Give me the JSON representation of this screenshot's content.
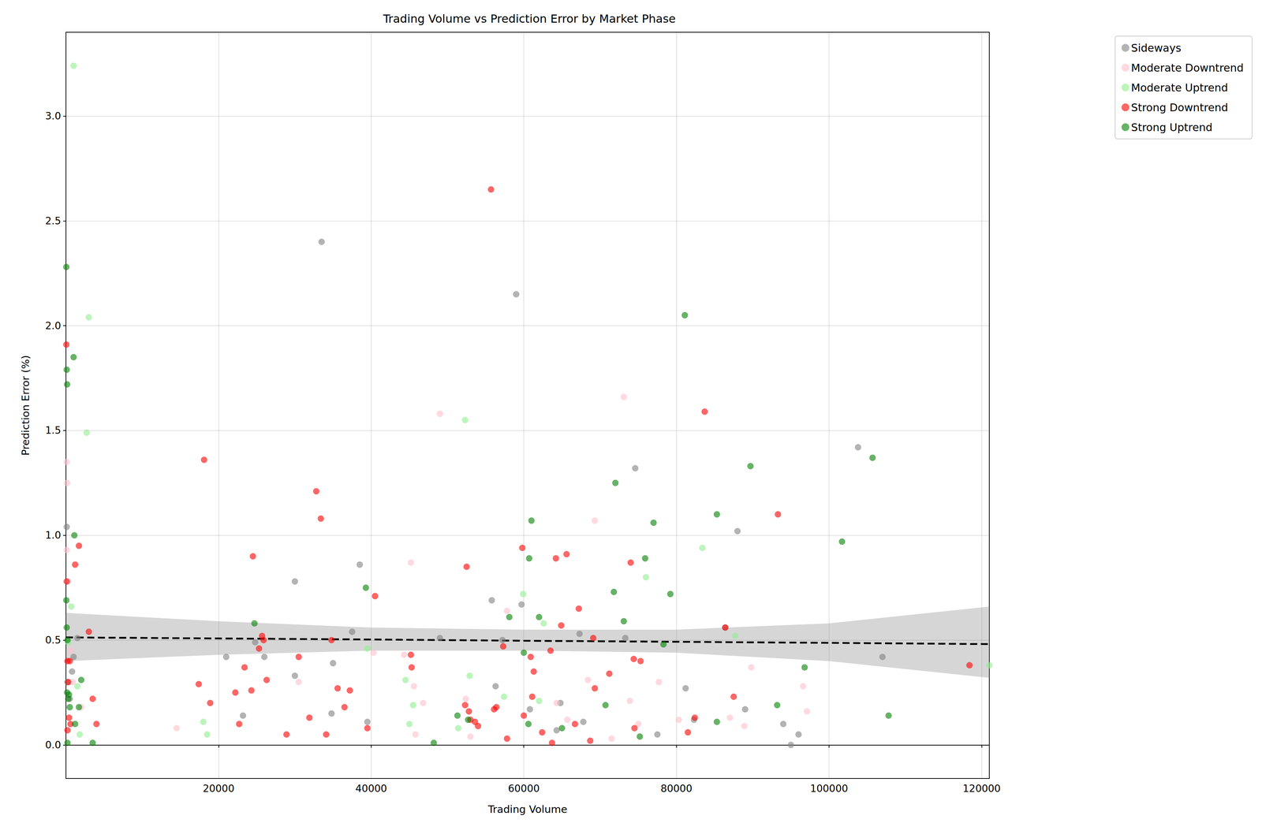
{
  "chart_data": {
    "type": "scatter",
    "title": "Trading Volume vs Prediction Error by Market Phase",
    "x_label": "Trading Volume",
    "y_label": "Prediction Error (%)",
    "xlim": [
      0,
      121000
    ],
    "xticks": [
      20000,
      40000,
      60000,
      80000,
      100000,
      120000
    ],
    "ylim": [
      -0.16,
      3.4
    ],
    "yticks": [
      {
        "value": 0,
        "label": "0.0"
      },
      0.5,
      {
        "value": 1,
        "label": "1.0"
      },
      1.5,
      {
        "value": 2,
        "label": "2.0"
      },
      2.5,
      {
        "value": 3,
        "label": "3.0"
      }
    ],
    "grid": true,
    "legend": "upper right outside",
    "series": [
      {
        "name": "Sideways",
        "color": "#808080",
        "marker": "circle",
        "x": [
          100,
          800,
          1000,
          1500,
          21000,
          23200,
          24800,
          26000,
          30000,
          30000,
          33500,
          34800,
          35000,
          37500,
          38500,
          39500,
          49000,
          55800,
          56300,
          57200,
          59000,
          59700,
          60800,
          64300,
          64800,
          67300,
          67800,
          73300,
          74600,
          77500,
          81200,
          82300,
          86400,
          88000,
          89000,
          94000,
          95000,
          96000,
          103800,
          107000,
          200,
          500
        ],
        "values": [
          1.04,
          0.35,
          0.42,
          0.51,
          0.42,
          0.14,
          0.49,
          0.42,
          0.78,
          0.33,
          2.4,
          0.15,
          0.39,
          0.54,
          0.86,
          0.11,
          0.51,
          0.69,
          0.28,
          0.5,
          2.15,
          0.67,
          0.17,
          0.07,
          0.2,
          0.53,
          0.11,
          0.51,
          1.32,
          0.05,
          0.27,
          0.12,
          0.56,
          1.02,
          0.17,
          0.1,
          0.0,
          0.05,
          1.42,
          0.42,
          0.3,
          0.22
        ]
      },
      {
        "name": "Moderate Downtrend",
        "color": "#ffc0cb",
        "marker": "circle",
        "x": [
          100,
          150,
          100,
          300,
          600,
          900,
          2000,
          14500,
          30500,
          40300,
          44300,
          45200,
          45600,
          45800,
          46800,
          49000,
          52400,
          53000,
          57800,
          64300,
          65700,
          68400,
          69300,
          71500,
          73100,
          73900,
          75000,
          77700,
          80300,
          87000,
          88900,
          89800,
          96600,
          97100
        ],
        "values": [
          1.35,
          1.25,
          0.93,
          0.78,
          0.45,
          0.3,
          0.18,
          0.08,
          0.3,
          0.44,
          0.43,
          0.87,
          0.28,
          0.05,
          0.2,
          1.58,
          0.22,
          0.04,
          0.64,
          0.2,
          0.12,
          0.31,
          1.07,
          0.03,
          1.66,
          0.21,
          0.1,
          0.3,
          0.12,
          0.13,
          0.09,
          0.37,
          0.28,
          0.16
        ]
      },
      {
        "name": "Moderate Uptrend",
        "color": "#90ee90",
        "marker": "circle",
        "x": [
          1000,
          3000,
          2700,
          700,
          1500,
          300,
          1800,
          18000,
          18500,
          39500,
          44500,
          45000,
          45500,
          51400,
          52300,
          52900,
          57400,
          59900,
          62000,
          62600,
          76000,
          83400,
          87700,
          121000
        ],
        "values": [
          3.24,
          2.04,
          1.49,
          0.66,
          0.28,
          0.49,
          0.05,
          0.11,
          0.05,
          0.46,
          0.31,
          0.1,
          0.19,
          0.08,
          1.55,
          0.33,
          0.23,
          0.72,
          0.21,
          0.58,
          0.8,
          0.94,
          0.52,
          0.38
        ]
      },
      {
        "name": "Strong Downtrend",
        "color": "#ff0000",
        "marker": "circle",
        "x": [
          50,
          100,
          200,
          500,
          300,
          400,
          600,
          200,
          1700,
          1200,
          3000,
          3500,
          4000,
          17400,
          18100,
          18900,
          22200,
          22700,
          23400,
          24300,
          24500,
          25300,
          25700,
          25900,
          26300,
          28900,
          30500,
          31900,
          32800,
          33400,
          34100,
          34800,
          35600,
          36500,
          37200,
          39500,
          40500,
          45200,
          45300,
          52300,
          52500,
          52800,
          53000,
          53600,
          54000,
          55700,
          56100,
          56400,
          57300,
          57800,
          59800,
          60000,
          60900,
          61100,
          61300,
          62400,
          63500,
          63700,
          64200,
          64900,
          65600,
          66700,
          67200,
          68700,
          69100,
          69300,
          71200,
          74000,
          74400,
          74500,
          75300,
          81500,
          82400,
          83700,
          86400,
          87500,
          93300,
          118400
        ],
        "values": [
          1.91,
          0.78,
          0.4,
          0.4,
          0.3,
          0.13,
          0.1,
          0.07,
          0.95,
          0.86,
          0.54,
          0.22,
          0.1,
          0.29,
          1.36,
          0.2,
          0.25,
          0.1,
          0.37,
          0.26,
          0.9,
          0.46,
          0.52,
          0.5,
          0.31,
          0.05,
          0.42,
          0.13,
          1.21,
          1.08,
          0.05,
          0.5,
          0.27,
          0.18,
          0.26,
          0.08,
          0.71,
          0.43,
          0.37,
          0.19,
          0.85,
          0.16,
          0.12,
          0.11,
          0.09,
          2.65,
          0.17,
          0.18,
          0.47,
          0.03,
          0.94,
          0.14,
          0.42,
          0.23,
          0.35,
          0.06,
          0.45,
          0.01,
          0.89,
          0.57,
          0.91,
          0.1,
          0.65,
          0.02,
          0.51,
          0.27,
          0.34,
          0.87,
          0.41,
          0.08,
          0.4,
          0.06,
          0.13,
          1.59,
          0.56,
          0.23,
          1.1,
          0.38
        ]
      },
      {
        "name": "Strong Uptrend",
        "color": "#008000",
        "marker": "circle",
        "x": [
          50,
          100,
          150,
          1000,
          1100,
          50,
          100,
          200,
          150,
          300,
          400,
          500,
          1200,
          1700,
          2000,
          200,
          3500,
          24700,
          39300,
          48200,
          51300,
          52700,
          58100,
          60000,
          60600,
          60700,
          61000,
          62000,
          65000,
          70700,
          71800,
          72000,
          73100,
          75200,
          75900,
          77000,
          78300,
          79200,
          81100,
          85300,
          85300,
          89700,
          93200,
          96800,
          101700,
          105700,
          107800
        ],
        "values": [
          2.28,
          1.79,
          1.72,
          1.85,
          1.0,
          0.69,
          0.56,
          0.5,
          0.25,
          0.22,
          0.24,
          0.18,
          0.1,
          0.18,
          0.31,
          0.01,
          0.01,
          0.58,
          0.75,
          0.01,
          0.14,
          0.12,
          0.61,
          0.44,
          0.1,
          0.89,
          1.07,
          0.61,
          0.08,
          0.19,
          0.73,
          1.25,
          0.59,
          0.04,
          0.89,
          1.06,
          0.48,
          0.72,
          2.05,
          1.1,
          0.11,
          1.33,
          0.19,
          0.37,
          0.97,
          1.37,
          0.14
        ]
      }
    ],
    "regression": {
      "type": "line",
      "color": "#000000",
      "line_style": "dashed",
      "x": [
        0,
        20000,
        40000,
        60000,
        80000,
        100000,
        121000
      ],
      "values": [
        0.513,
        0.508,
        0.503,
        0.497,
        0.492,
        0.487,
        0.481
      ],
      "lower": [
        0.4,
        0.43,
        0.45,
        0.45,
        0.44,
        0.4,
        0.32
      ],
      "upper": [
        0.63,
        0.59,
        0.56,
        0.55,
        0.55,
        0.58,
        0.66
      ]
    }
  }
}
